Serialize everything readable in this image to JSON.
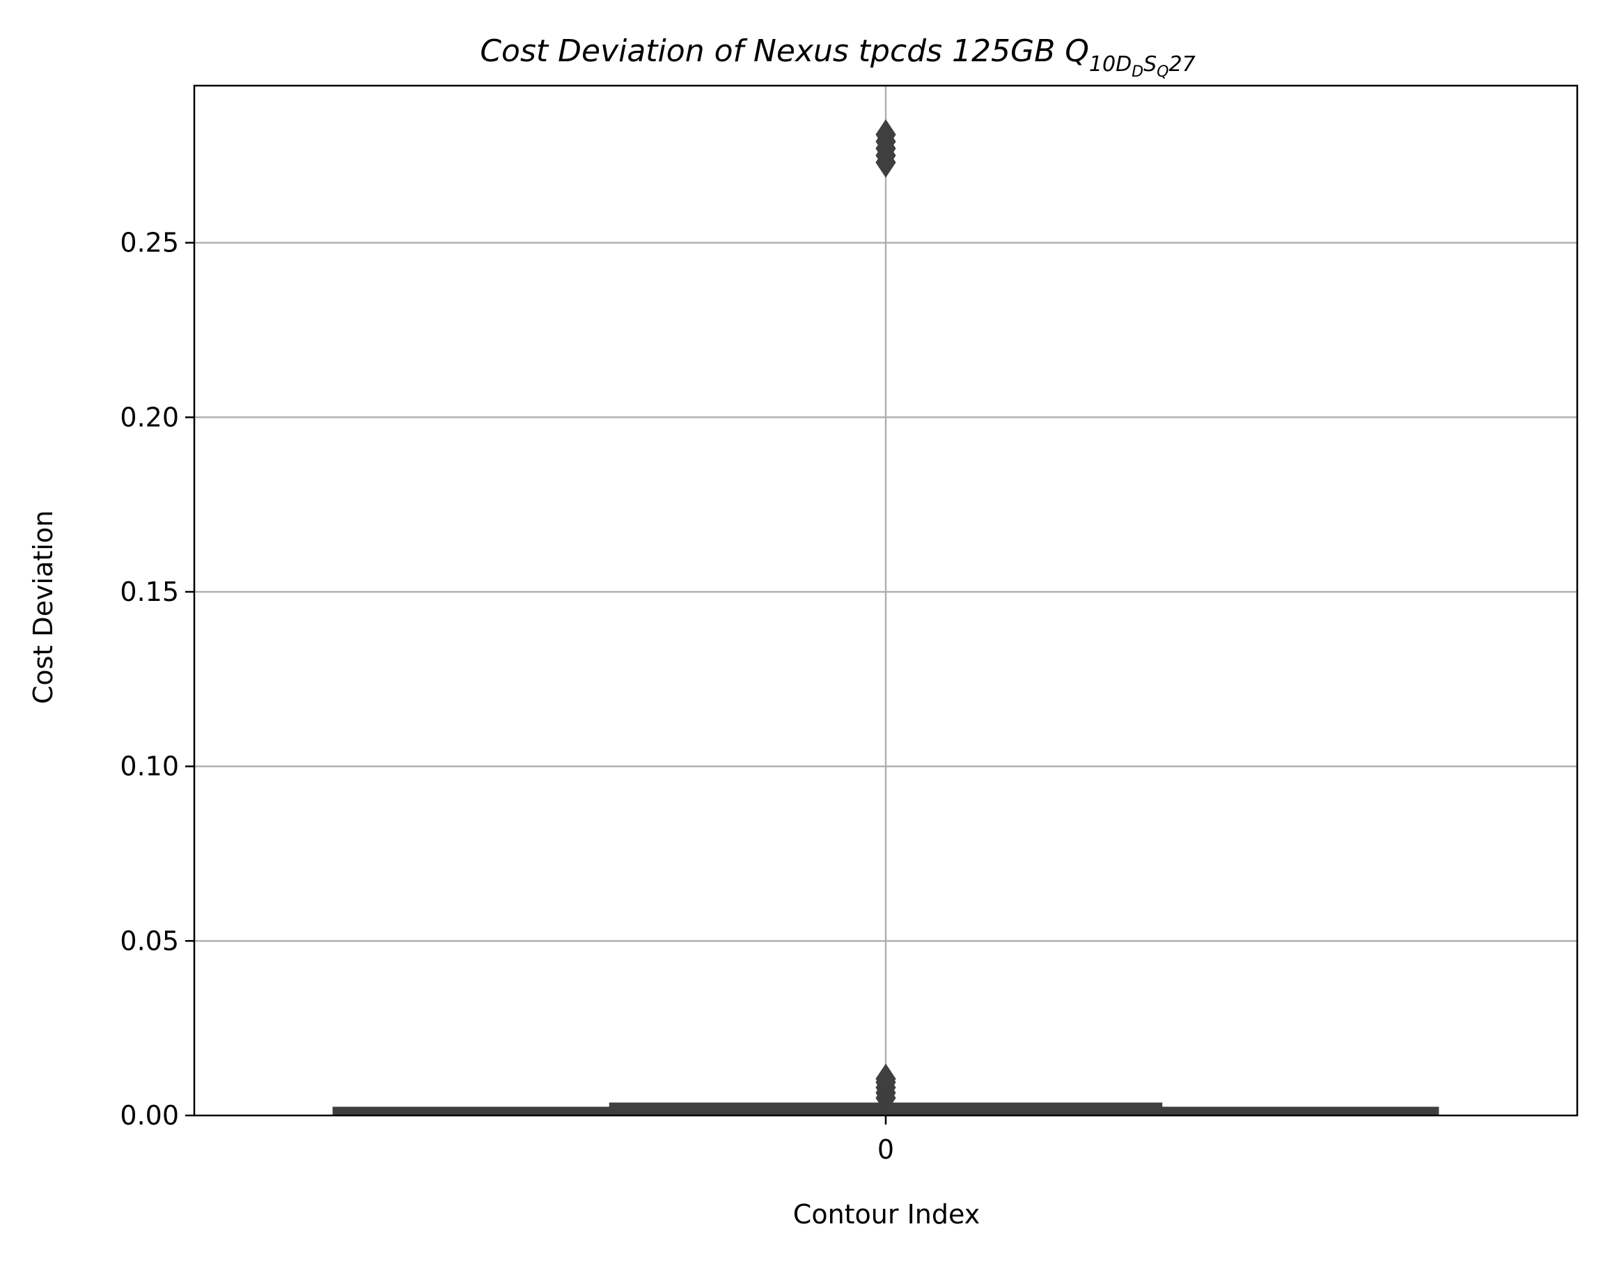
{
  "chart_data": {
    "type": "box",
    "title": {
      "main": "Cost Deviation of Nexus tpcds  125GB  Q",
      "subscript": "10D",
      "sub_sub_1": "D",
      "subscript_2": "S",
      "sub_sub_2": "Q",
      "suffix": "27"
    },
    "xlabel": "Contour Index",
    "ylabel": "Cost Deviation",
    "categories": [
      "0"
    ],
    "ylim": [
      0,
      0.295
    ],
    "yticks": [
      0.0,
      0.05,
      0.1,
      0.15,
      0.2,
      0.25
    ],
    "ytick_labels": [
      "0.00",
      "0.05",
      "0.10",
      "0.15",
      "0.20",
      "0.25"
    ],
    "grid": true,
    "colors": {
      "box": "#3f3f3f",
      "grid": "#b0b0b0",
      "axis": "#000000"
    },
    "boxes": [
      {
        "category": "0",
        "levels": [
          {
            "name": "outer",
            "lower": 0.0,
            "upper": 0.0025
          },
          {
            "name": "inner",
            "lower": 0.0,
            "upper": 0.0037
          }
        ],
        "median": 0.0015,
        "outliers": [
          0.005,
          0.0065,
          0.008,
          0.0095,
          0.0105,
          0.273,
          0.275,
          0.277,
          0.279,
          0.281
        ]
      }
    ]
  }
}
